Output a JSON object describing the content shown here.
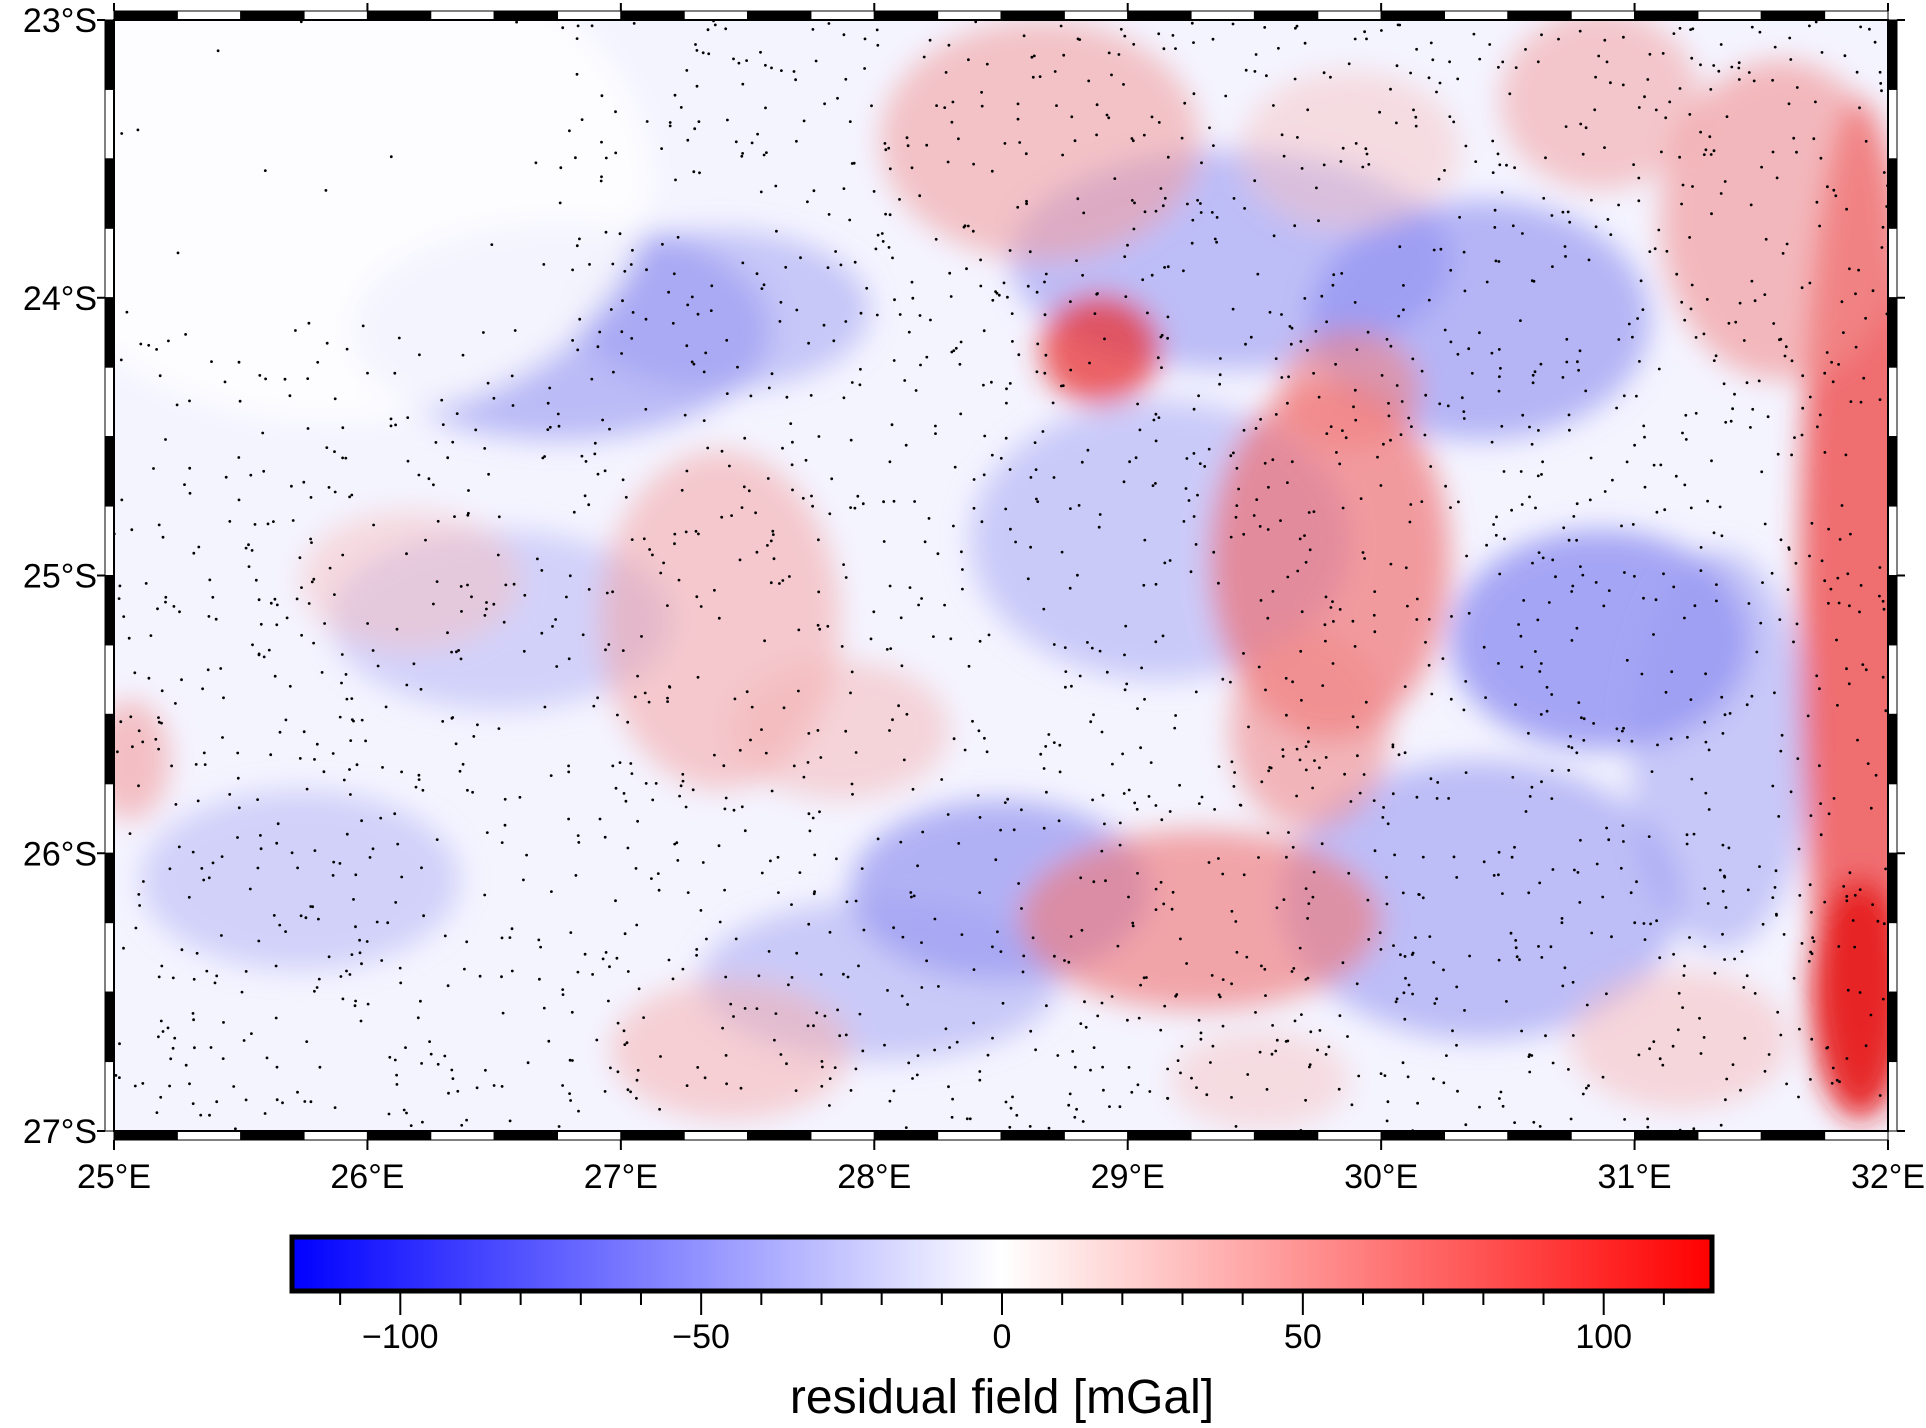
{
  "map": {
    "region": {
      "lon_min": 25,
      "lon_max": 32,
      "lat_min": -27,
      "lat_max": -23
    },
    "x_tick_labels": [
      "25°E",
      "26°E",
      "27°E",
      "28°E",
      "29°E",
      "30°E",
      "31°E",
      "32°E"
    ],
    "x_tick_values": [
      25,
      26,
      27,
      28,
      29,
      30,
      31,
      32
    ],
    "y_tick_labels": [
      "23°S",
      "24°S",
      "25°S",
      "26°S",
      "27°S"
    ],
    "y_tick_values": [
      -23,
      -24,
      -25,
      -26,
      -27
    ],
    "frame_style": "checkerboard",
    "grid": false,
    "data_points_shown": true
  },
  "colorbar": {
    "label": "residual field [mGal]",
    "range": [
      -118,
      118
    ],
    "tick_labels": [
      "−100",
      "−50",
      "0",
      "50",
      "100"
    ],
    "tick_values": [
      -100,
      -50,
      0,
      50,
      100
    ],
    "minor_tick_step": 10,
    "colors": {
      "low": "#0000ff",
      "mid": "#ffffff",
      "high": "#ff0000"
    },
    "placement": "bottom-center"
  },
  "colors": {
    "frame": "#000000",
    "points": "#000000"
  }
}
